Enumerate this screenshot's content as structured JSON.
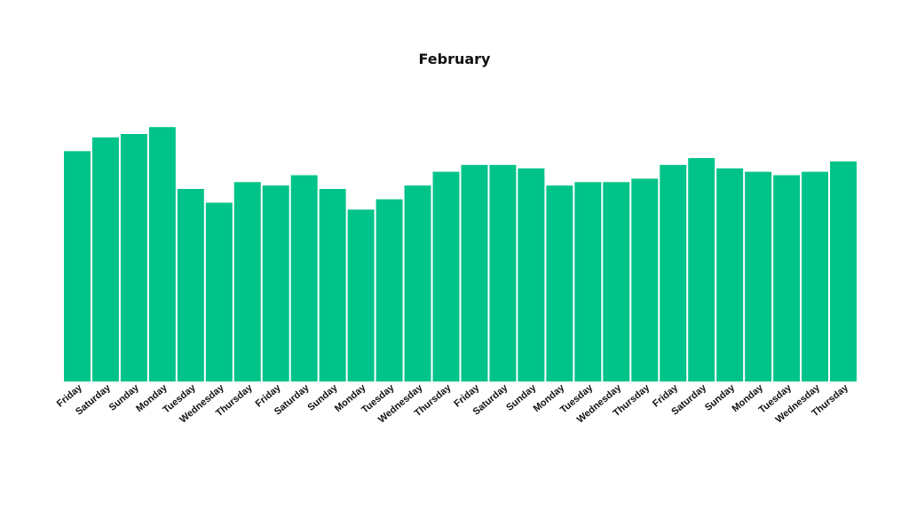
{
  "chart_data": {
    "type": "bar",
    "title": "February",
    "xlabel": "",
    "ylabel": "",
    "categories": [
      "Friday",
      "Saturday",
      "Sunday",
      "Monday",
      "Tuesday",
      "Wednesday",
      "Thursday",
      "Friday",
      "Saturday",
      "Sunday",
      "Monday",
      "Tuesday",
      "Wednesday",
      "Thursday",
      "Friday",
      "Saturday",
      "Sunday",
      "Monday",
      "Tuesday",
      "Wednesday",
      "Thursday",
      "Friday",
      "Saturday",
      "Sunday",
      "Monday",
      "Tuesday",
      "Wednesday",
      "Thursday"
    ],
    "values": [
      67,
      71,
      72,
      74,
      56,
      52,
      58,
      57,
      60,
      56,
      50,
      53,
      57,
      61,
      63,
      63,
      62,
      57,
      58,
      58,
      59,
      63,
      65,
      62,
      61,
      60,
      61,
      64
    ],
    "ylim": [
      0,
      80
    ],
    "grid": false,
    "legend": "none",
    "colors": {
      "bar": "#00c389",
      "text": "#111111"
    }
  }
}
